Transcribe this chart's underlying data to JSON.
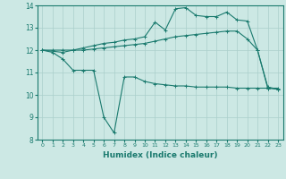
{
  "title": "",
  "xlabel": "Humidex (Indice chaleur)",
  "ylabel": "",
  "bg_color": "#cce8e4",
  "grid_color": "#aacfcb",
  "line_color": "#1a7a6e",
  "xlim": [
    -0.5,
    23.5
  ],
  "ylim": [
    8,
    14
  ],
  "yticks": [
    8,
    9,
    10,
    11,
    12,
    13,
    14
  ],
  "xticks": [
    0,
    1,
    2,
    3,
    4,
    5,
    6,
    7,
    8,
    9,
    10,
    11,
    12,
    13,
    14,
    15,
    16,
    17,
    18,
    19,
    20,
    21,
    22,
    23
  ],
  "line1_x": [
    0,
    1,
    2,
    3,
    4,
    5,
    6,
    7,
    8,
    9,
    10,
    11,
    12,
    13,
    14,
    15,
    16,
    17,
    18,
    19,
    20,
    21,
    22,
    23
  ],
  "line1_y": [
    12.0,
    11.9,
    11.6,
    11.1,
    11.1,
    11.1,
    9.0,
    8.3,
    10.8,
    10.8,
    10.6,
    10.5,
    10.45,
    10.4,
    10.4,
    10.35,
    10.35,
    10.35,
    10.35,
    10.3,
    10.3,
    10.3,
    10.3,
    10.25
  ],
  "line2_x": [
    0,
    1,
    2,
    3,
    4,
    5,
    6,
    7,
    8,
    9,
    10,
    11,
    12,
    13,
    14,
    15,
    16,
    17,
    18,
    19,
    20,
    21,
    22,
    23
  ],
  "line2_y": [
    12.0,
    12.0,
    12.0,
    12.0,
    12.0,
    12.05,
    12.1,
    12.15,
    12.2,
    12.25,
    12.3,
    12.4,
    12.5,
    12.6,
    12.65,
    12.7,
    12.75,
    12.8,
    12.85,
    12.85,
    12.5,
    12.0,
    10.3,
    10.3
  ],
  "line3_x": [
    0,
    2,
    3,
    4,
    5,
    6,
    7,
    8,
    9,
    10,
    11,
    12,
    13,
    14,
    15,
    16,
    17,
    18,
    19,
    20,
    21,
    22,
    23
  ],
  "line3_y": [
    12.0,
    11.9,
    12.0,
    12.1,
    12.2,
    12.3,
    12.35,
    12.45,
    12.5,
    12.6,
    13.25,
    12.9,
    13.85,
    13.9,
    13.55,
    13.5,
    13.5,
    13.7,
    13.35,
    13.3,
    12.0,
    10.35,
    10.25
  ]
}
